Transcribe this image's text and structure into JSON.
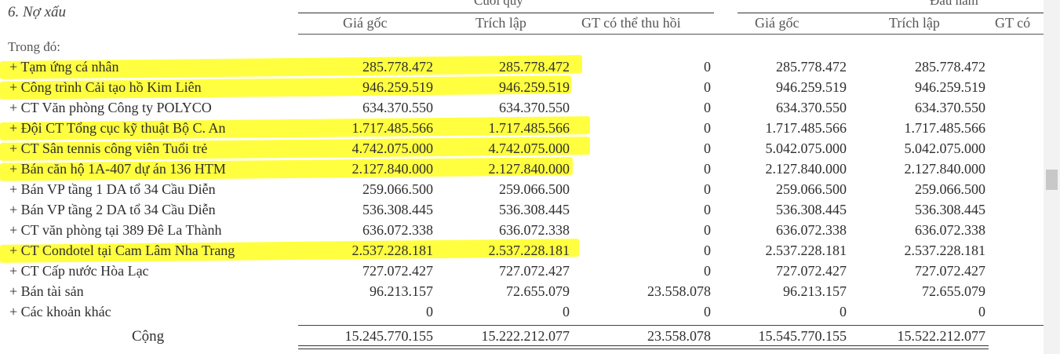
{
  "section": {
    "title": "6. Nợ xấu",
    "note": "Trong đó:"
  },
  "groups": {
    "end_of_quarter": "Cuối quý",
    "beginning_of_year": "Đầu năm"
  },
  "headers": [
    "Giá gốc",
    "Trích lập",
    "GT có thể thu hồi",
    "Giá gốc",
    "Trích lập",
    "GT có"
  ],
  "rows": [
    {
      "label": "+ Tạm ứng cá nhân",
      "values": [
        "285.778.472",
        "285.778.472",
        "0",
        "285.778.472",
        "285.778.472"
      ],
      "highlight": true
    },
    {
      "label": "+ Công trình Cải tạo hồ Kim Liên",
      "values": [
        "946.259.519",
        "946.259.519",
        "0",
        "946.259.519",
        "946.259.519"
      ],
      "highlight": true
    },
    {
      "label": "+ CT Văn phòng Công ty POLYCO",
      "values": [
        "634.370.550",
        "634.370.550",
        "0",
        "634.370.550",
        "634.370.550"
      ],
      "highlight": false
    },
    {
      "label": "+ Đội CT Tổng cục kỹ thuật Bộ C. An",
      "values": [
        "1.717.485.566",
        "1.717.485.566",
        "0",
        "1.717.485.566",
        "1.717.485.566"
      ],
      "highlight": true
    },
    {
      "label": "+ CT Sân tennis công viên Tuổi trẻ",
      "values": [
        "4.742.075.000",
        "4.742.075.000",
        "0",
        "5.042.075.000",
        "5.042.075.000"
      ],
      "highlight": true
    },
    {
      "label": "+ Bán căn hộ 1A-407 dự án 136 HTM",
      "values": [
        "2.127.840.000",
        "2.127.840.000",
        "0",
        "2.127.840.000",
        "2.127.840.000"
      ],
      "highlight": true
    },
    {
      "label": "+ Bán VP tầng 1 DA tổ 34 Cầu Diễn",
      "values": [
        "259.066.500",
        "259.066.500",
        "0",
        "259.066.500",
        "259.066.500"
      ],
      "highlight": false
    },
    {
      "label": "+ Bán VP tầng 2 DA tổ 34 Cầu Diễn",
      "values": [
        "536.308.445",
        "536.308.445",
        "0",
        "536.308.445",
        "536.308.445"
      ],
      "highlight": false
    },
    {
      "label": "+ CT văn phòng tại 389 Đê La Thành",
      "values": [
        "636.072.338",
        "636.072.338",
        "0",
        "636.072.338",
        "636.072.338"
      ],
      "highlight": false
    },
    {
      "label": "+ CT Condotel tại Cam Lâm Nha Trang",
      "values": [
        "2.537.228.181",
        "2.537.228.181",
        "0",
        "2.537.228.181",
        "2.537.228.181"
      ],
      "highlight": true
    },
    {
      "label": "+ CT Cấp nước Hòa Lạc",
      "values": [
        "727.072.427",
        "727.072.427",
        "0",
        "727.072.427",
        "727.072.427"
      ],
      "highlight": false
    },
    {
      "label": "+ Bán tài sản",
      "values": [
        "96.213.157",
        "72.655.079",
        "23.558.078",
        "96.213.157",
        "72.655.079"
      ],
      "highlight": false
    },
    {
      "label": "+ Các khoản khác",
      "values": [
        "0",
        "0",
        "0",
        "0",
        "0"
      ],
      "highlight": false
    }
  ],
  "total": {
    "label": "Cộng",
    "values": [
      "15.245.770.155",
      "15.222.212.077",
      "23.558.078",
      "15.545.770.155",
      "15.522.212.077"
    ]
  },
  "colors": {
    "highlight": "#ffff2a",
    "text": "#2e2e2e"
  }
}
